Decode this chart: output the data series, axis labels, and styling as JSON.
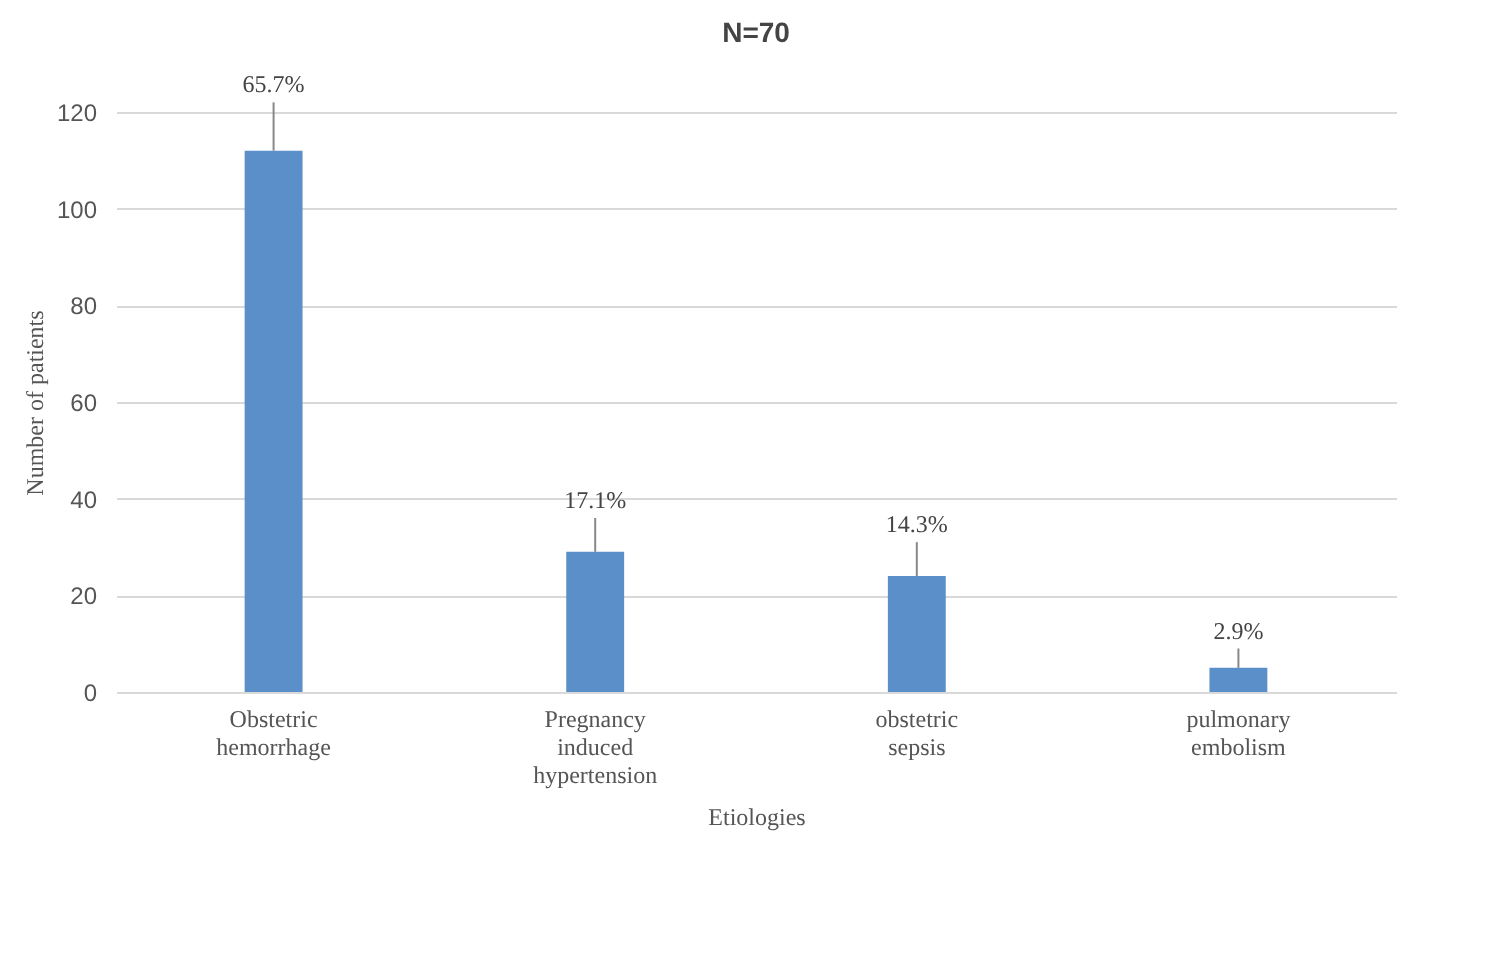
{
  "chart_data": {
    "type": "bar",
    "title": "N=70",
    "xlabel": "Etiologies",
    "ylabel": "Number of patients",
    "categories": [
      "Obstetric hemorrhage",
      "Pregnancy induced hypertension",
      "obstetric sepsis",
      "pulmonary embolism"
    ],
    "values": [
      112,
      29,
      24,
      5
    ],
    "errors": [
      [
        112,
        122
      ],
      [
        29,
        36
      ],
      [
        24,
        31
      ],
      [
        5,
        9
      ]
    ],
    "annotations": [
      {
        "text": "65.7%",
        "x": "Obstetric hemorrhage",
        "y": 122
      },
      {
        "text": "17.1%",
        "x": "Pregnancy induced hypertension",
        "y": 36
      },
      {
        "text": "14.3%",
        "x": "obstetric sepsis",
        "y": 31
      },
      {
        "text": "2.9%",
        "x": "pulmonary embolism",
        "y": 9
      }
    ],
    "color": "#5b8fc9",
    "ylim": [
      0,
      120
    ],
    "yticks": [
      0,
      20,
      40,
      60,
      80,
      100,
      120
    ],
    "grid": "y"
  }
}
